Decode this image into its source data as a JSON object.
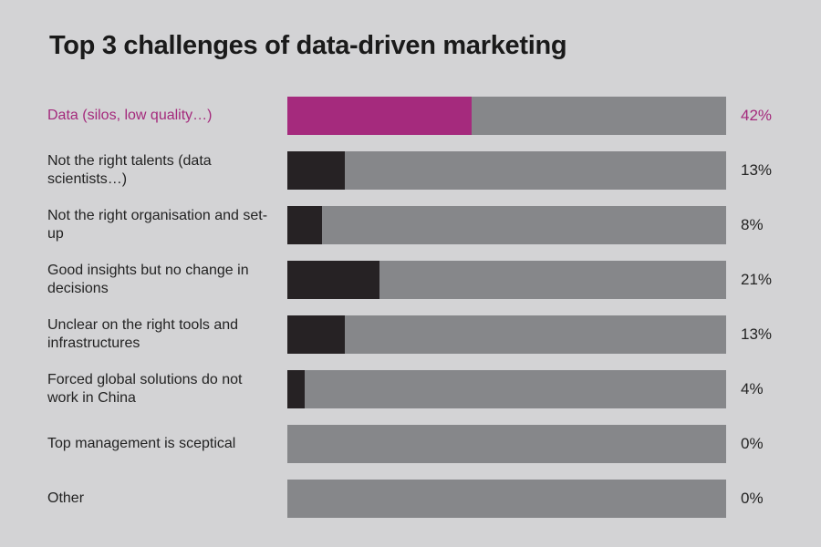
{
  "chart_data": {
    "type": "bar",
    "orientation": "horizontal",
    "title": "Top 3 challenges of data-driven marketing",
    "xlim": [
      0,
      100
    ],
    "categories": [
      "Data (silos, low quality…)",
      "Not the right talents (data scientists…)",
      "Not the right organisation and set-up",
      "Good insights but no change in decisions",
      "Unclear on the right tools and infrastructures",
      "Forced global solutions do not work in China",
      "Top management is sceptical",
      "Other"
    ],
    "values": [
      42,
      13,
      8,
      21,
      13,
      4,
      0,
      0
    ],
    "value_labels": [
      "42%",
      "13%",
      "8%",
      "21%",
      "13%",
      "4%",
      "0%",
      "0%"
    ],
    "highlight_index": 0,
    "grid": false,
    "legend": "none"
  },
  "colors": {
    "background": "#d3d3d5",
    "track": "#86878a",
    "bar": "#262224",
    "highlight": "#a52a7d",
    "text": "#232323"
  }
}
